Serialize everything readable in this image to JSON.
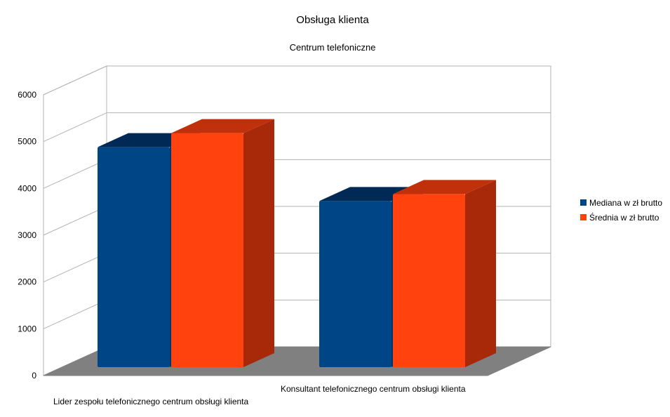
{
  "chart_data": {
    "type": "bar",
    "title": "Obsługa klienta",
    "subtitle": "Centrum telefoniczne",
    "categories": [
      "Lider zespołu telefonicznego centrum obsługi klienta",
      "Konsultant telefonicznego centrum obsługi klienta"
    ],
    "series": [
      {
        "name": "Mediana w zł brutto",
        "values": [
          4700,
          3550
        ],
        "color": "#004586"
      },
      {
        "name": "Średnia w zł brutto",
        "values": [
          5000,
          3700
        ],
        "color": "#ff420e"
      }
    ],
    "yticks": [
      "0",
      "1000",
      "2000",
      "3000",
      "4000",
      "5000",
      "6000"
    ],
    "ylim": [
      0,
      6000
    ],
    "grid": true,
    "legend_position": "right",
    "three_d": true
  }
}
